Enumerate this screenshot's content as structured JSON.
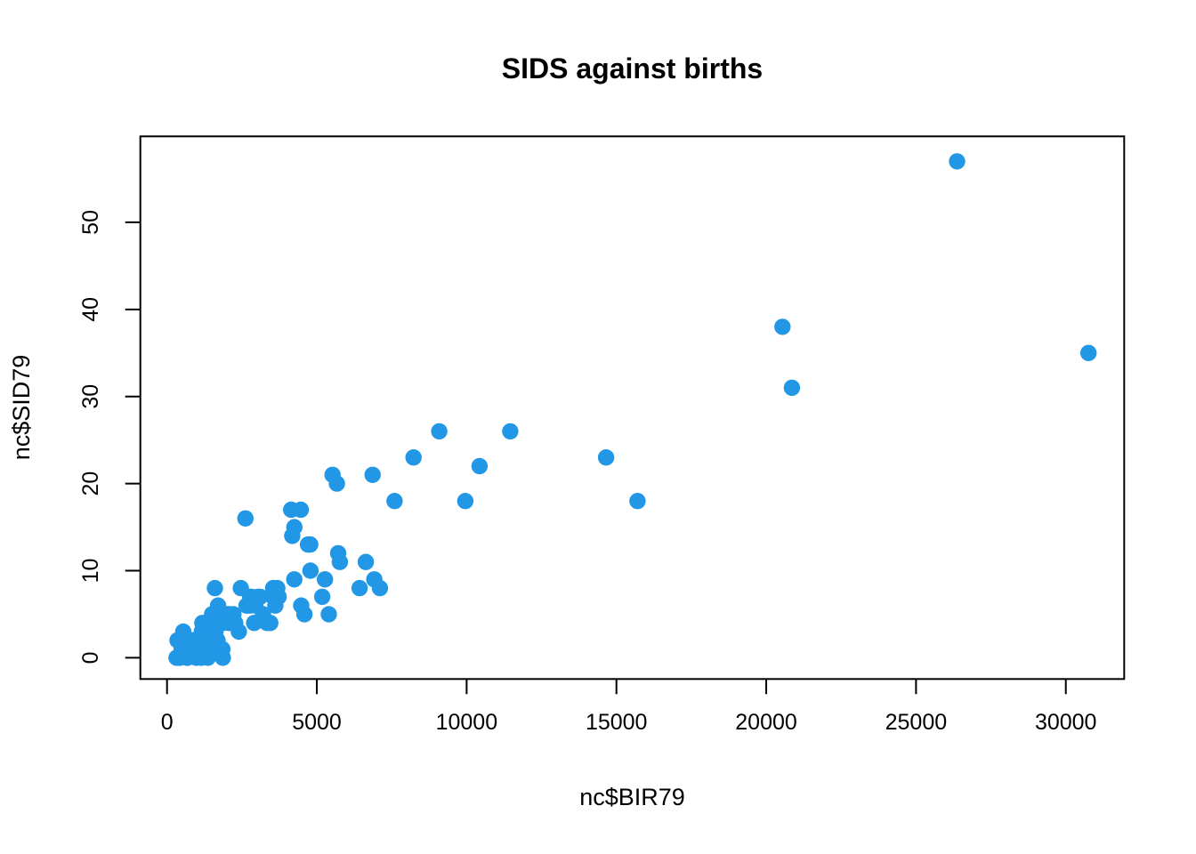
{
  "title": "SIDS against births",
  "colors": {
    "point": "#2297E6",
    "axis": "#000000",
    "background": "#FFFFFF"
  },
  "x_axis": {
    "label": "nc$BIR79",
    "ticks": [
      0,
      5000,
      10000,
      15000,
      20000,
      25000,
      30000
    ]
  },
  "y_axis": {
    "label": "nc$SID79",
    "ticks": [
      0,
      10,
      20,
      30,
      40,
      50
    ]
  },
  "chart_data": {
    "type": "scatter",
    "title": "SIDS against births",
    "xlabel": "nc$BIR79",
    "ylabel": "nc$SID79",
    "xlim": [
      -891,
      31948
    ],
    "ylim": [
      -2.44,
      59.87
    ],
    "x_ticks": [
      0,
      5000,
      10000,
      15000,
      20000,
      25000,
      30000
    ],
    "y_ticks": [
      0,
      10,
      20,
      30,
      40,
      50
    ],
    "grid": false,
    "legend": "none",
    "marker": "filled-circle",
    "x": [
      319,
      350,
      419,
      427,
      488,
      542,
      594,
      650,
      652,
      673,
      676,
      795,
      830,
      869,
      899,
      919,
      926,
      977,
      1059,
      1141,
      1157,
      1173,
      1178,
      1190,
      1253,
      1364,
      1401,
      1504,
      1568,
      1598,
      1602,
      1606,
      1616,
      1635,
      1683,
      1706,
      1775,
      1790,
      1838,
      1849,
      1863,
      1875,
      2038,
      2052,
      2074,
      2215,
      2275,
      2398,
      2463,
      2617,
      2655,
      2753,
      2777,
      2817,
      2909,
      2949,
      3039,
      3108,
      3204,
      3339,
      3447,
      3537,
      3543,
      3616,
      3679,
      3725,
      4144,
      4180,
      4249,
      4250,
      4463,
      4478,
      4586,
      4706,
      4780,
      4789,
      5180,
      5273,
      5400,
      5526,
      5669,
      5711,
      5767,
      6427,
      6635,
      6860,
      6917,
      7105,
      7595,
      8227,
      9087,
      9956,
      10432,
      11455,
      14655,
      15704,
      20543,
      20857,
      26370,
      30757
    ],
    "y": [
      0,
      2,
      0,
      0,
      1,
      3,
      2,
      2,
      1,
      0,
      0,
      2,
      2,
      1,
      1,
      2,
      2,
      0,
      1,
      0,
      3,
      1,
      4,
      2,
      2,
      0,
      4,
      5,
      1,
      8,
      3,
      3,
      3,
      1,
      2,
      6,
      1,
      4,
      5,
      1,
      0,
      4,
      5,
      5,
      4,
      5,
      4,
      3,
      8,
      16,
      6,
      6,
      7,
      7,
      4,
      6,
      7,
      7,
      5,
      4,
      4,
      7,
      8,
      6,
      8,
      7,
      17,
      14,
      9,
      15,
      17,
      6,
      5,
      13,
      13,
      10,
      7,
      9,
      5,
      21,
      20,
      12,
      11,
      8,
      11,
      21,
      9,
      8,
      18,
      23,
      26,
      18,
      22,
      26,
      23,
      18,
      38,
      31,
      57,
      35
    ]
  }
}
